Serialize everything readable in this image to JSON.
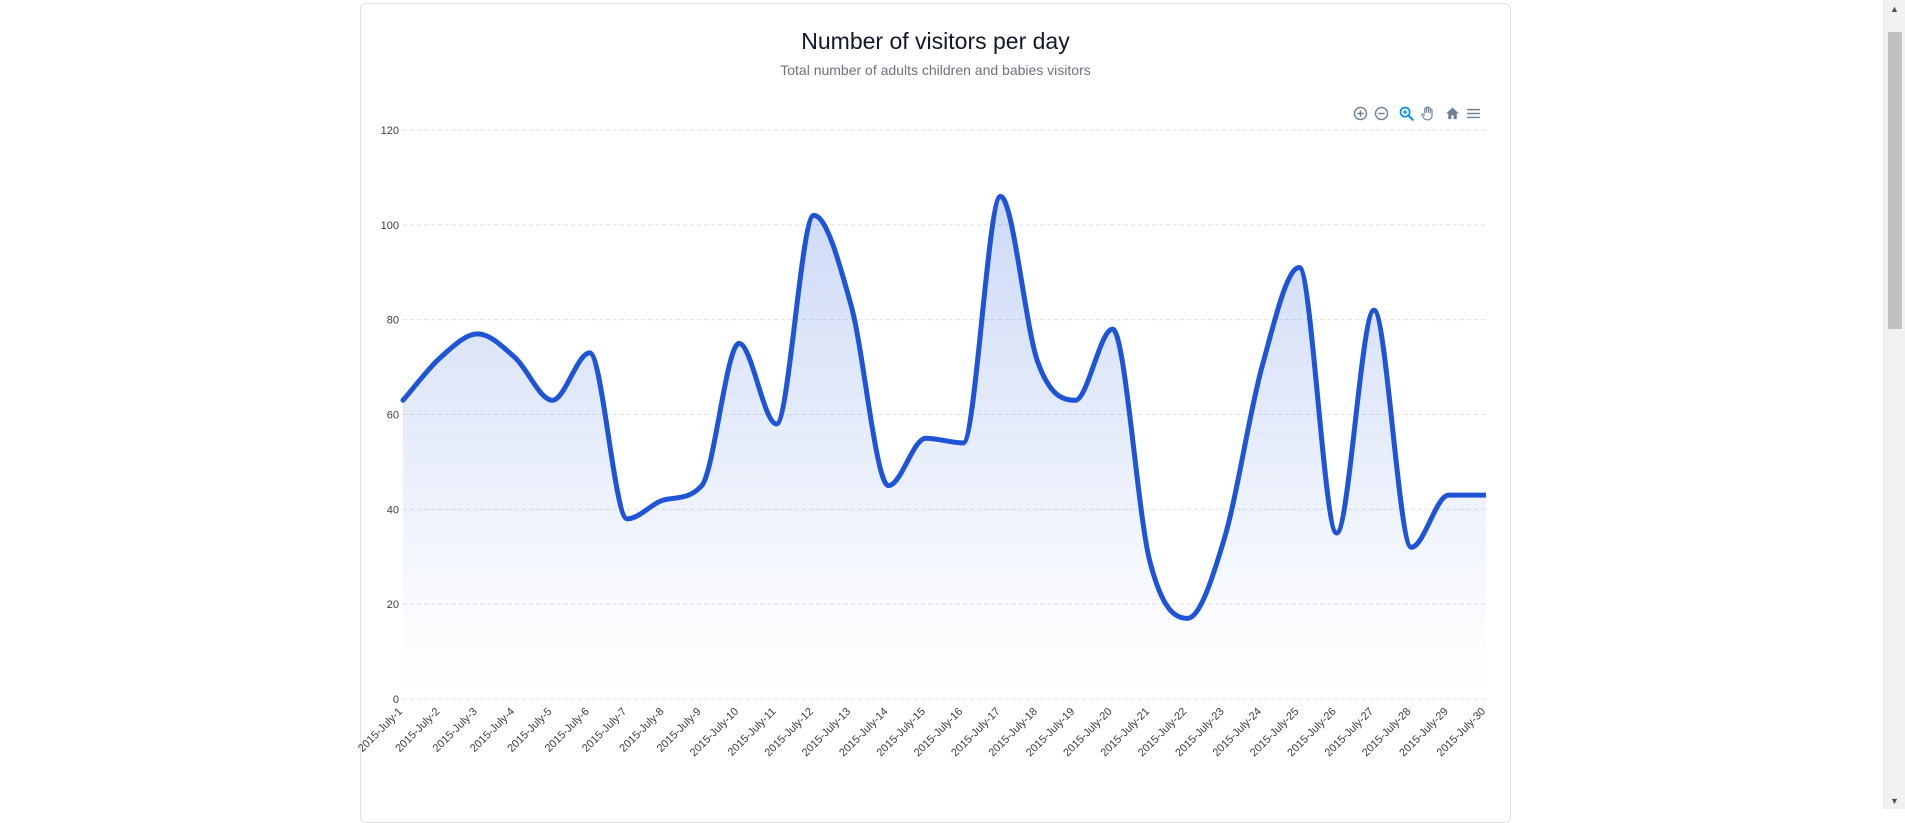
{
  "toolbar": {
    "icons": [
      "zoom-in-icon",
      "zoom-out-icon",
      "selection-zoom-icon",
      "pan-hand-icon",
      "reset-home-icon",
      "menu-icon"
    ],
    "active_color": "#008ffb",
    "icon_color": "#6e8192"
  },
  "chart_data": {
    "type": "area",
    "title": "Number of visitors per day",
    "subtitle": "Total number of adults children and babies visitors",
    "categories": [
      "2015-July-1",
      "2015-July-2",
      "2015-July-3",
      "2015-July-4",
      "2015-July-5",
      "2015-July-6",
      "2015-July-7",
      "2015-July-8",
      "2015-July-9",
      "2015-July-10",
      "2015-July-11",
      "2015-July-12",
      "2015-July-13",
      "2015-July-14",
      "2015-July-15",
      "2015-July-16",
      "2015-July-17",
      "2015-July-18",
      "2015-July-19",
      "2015-July-20",
      "2015-July-21",
      "2015-July-22",
      "2015-July-23",
      "2015-July-24",
      "2015-July-25",
      "2015-July-26",
      "2015-July-27",
      "2015-July-28",
      "2015-July-29",
      "2015-July-30"
    ],
    "series": [
      {
        "values": [
          63,
          72,
          77,
          72,
          63,
          73,
          38,
          42,
          45,
          75,
          58,
          102,
          83,
          45,
          55,
          54,
          106,
          71,
          63,
          78,
          29,
          17,
          34,
          70,
          91,
          35,
          82,
          32,
          43,
          43
        ]
      }
    ],
    "yticks": [
      "0",
      "20",
      "40",
      "60",
      "80",
      "100",
      "120"
    ],
    "ylim": [
      0,
      120
    ],
    "line_color": "#1e54d6",
    "fill_color": "#1e54d6",
    "grid": true,
    "curve": "smooth"
  }
}
